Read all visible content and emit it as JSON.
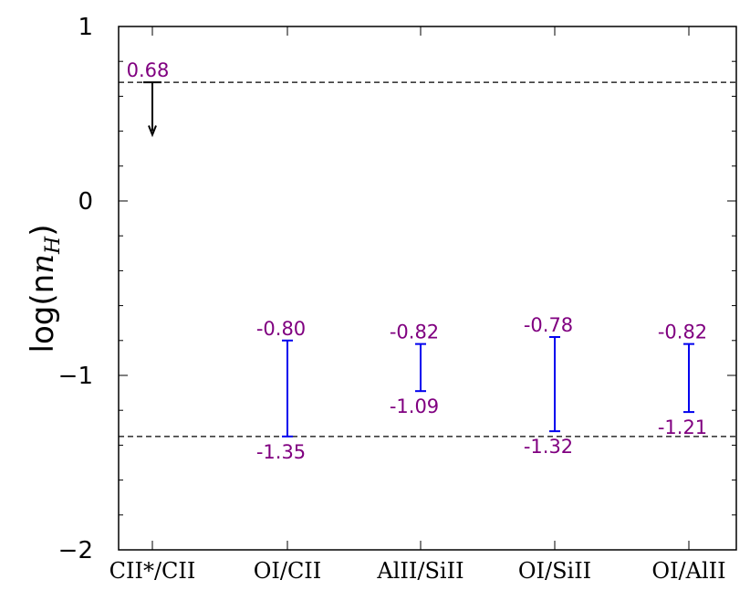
{
  "chart_data": {
    "type": "errorbar",
    "title": "",
    "xlabel": "",
    "ylabel": "log(n",
    "ylabel_sub": "H",
    "ylabel_close": ")",
    "ylim": [
      -2,
      1
    ],
    "yticks": [
      1,
      0,
      -1,
      -2
    ],
    "ytick_labels": [
      "1",
      "0",
      "−1",
      "−2"
    ],
    "categories": [
      "CII*/CII",
      "OI/CII",
      "AlII/SiII",
      "OI/SiII",
      "OI/AlII"
    ],
    "upper_limit": {
      "category": "CII*/CII",
      "value": 0.68,
      "label": "0.68",
      "arrow_to": 0.39
    },
    "ranges": [
      {
        "category": "OI/CII",
        "high": -0.8,
        "low": -1.35,
        "high_label": "-0.80",
        "low_label": "-1.35"
      },
      {
        "category": "AlII/SiII",
        "high": -0.82,
        "low": -1.09,
        "high_label": "-0.82",
        "low_label": "-1.09"
      },
      {
        "category": "OI/SiII",
        "high": -0.78,
        "low": -1.32,
        "high_label": "-0.78",
        "low_label": "-1.32"
      },
      {
        "category": "OI/AlII",
        "high": -0.82,
        "low": -1.21,
        "high_label": "-0.82",
        "low_label": "-1.21"
      }
    ],
    "reference_lines": [
      0.68,
      -1.35
    ],
    "colors": {
      "range": "#0000ee",
      "label": "#800080",
      "limit": "#000000",
      "dashed": "#000000"
    },
    "grid": false,
    "legend": "none"
  }
}
